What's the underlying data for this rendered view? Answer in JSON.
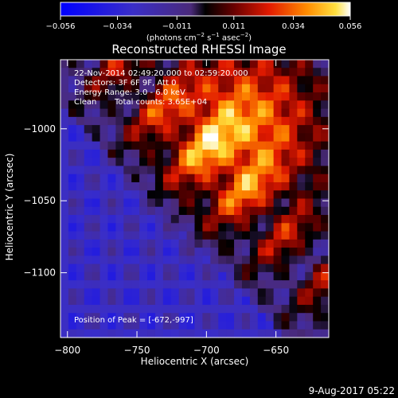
{
  "chart_data": {
    "type": "heatmap",
    "title": "Reconstructed RHESSI Image",
    "xlabel": "Heliocentric X (arcsec)",
    "ylabel": "Heliocentric Y (arcsec)",
    "xlim": [
      -805,
      -612
    ],
    "ylim": [
      -1145,
      -952
    ],
    "x_ticks": [
      -800,
      -750,
      -700,
      -650
    ],
    "y_ticks": [
      -1000,
      -1050,
      -1100
    ],
    "colorbar": {
      "min": -0.056,
      "max": 0.056,
      "tick_labels": [
        "−0.056",
        "−0.034",
        "−0.011",
        "0.011",
        "0.034",
        "0.056"
      ],
      "tick_values": [
        -0.056,
        -0.034,
        -0.011,
        0.011,
        0.034,
        0.056
      ],
      "unit_prefix": "(photons cm",
      "unit_exp1": "−2",
      "unit_mid": " s",
      "unit_exp2": "−1",
      "unit_suffix": " asec",
      "unit_exp3": "−2",
      "unit_close": ")"
    },
    "annotations": {
      "line1": "22-Nov-2014 02:49:20.000 to 02:59:20.000",
      "line2": "Detectors: 3F 6F 9F, Att 0",
      "line3": "Energy Range: 3.0 - 6.0 keV",
      "line4_a": "Clean",
      "line4_b": "Total counts: 3.65E+04",
      "peak": "Position of Peak = [-672,-997]"
    },
    "peak_position": [
      -672,
      -997
    ],
    "grid": false,
    "legend": "none"
  },
  "footer": {
    "date": "9-Aug-2017 05:22"
  }
}
